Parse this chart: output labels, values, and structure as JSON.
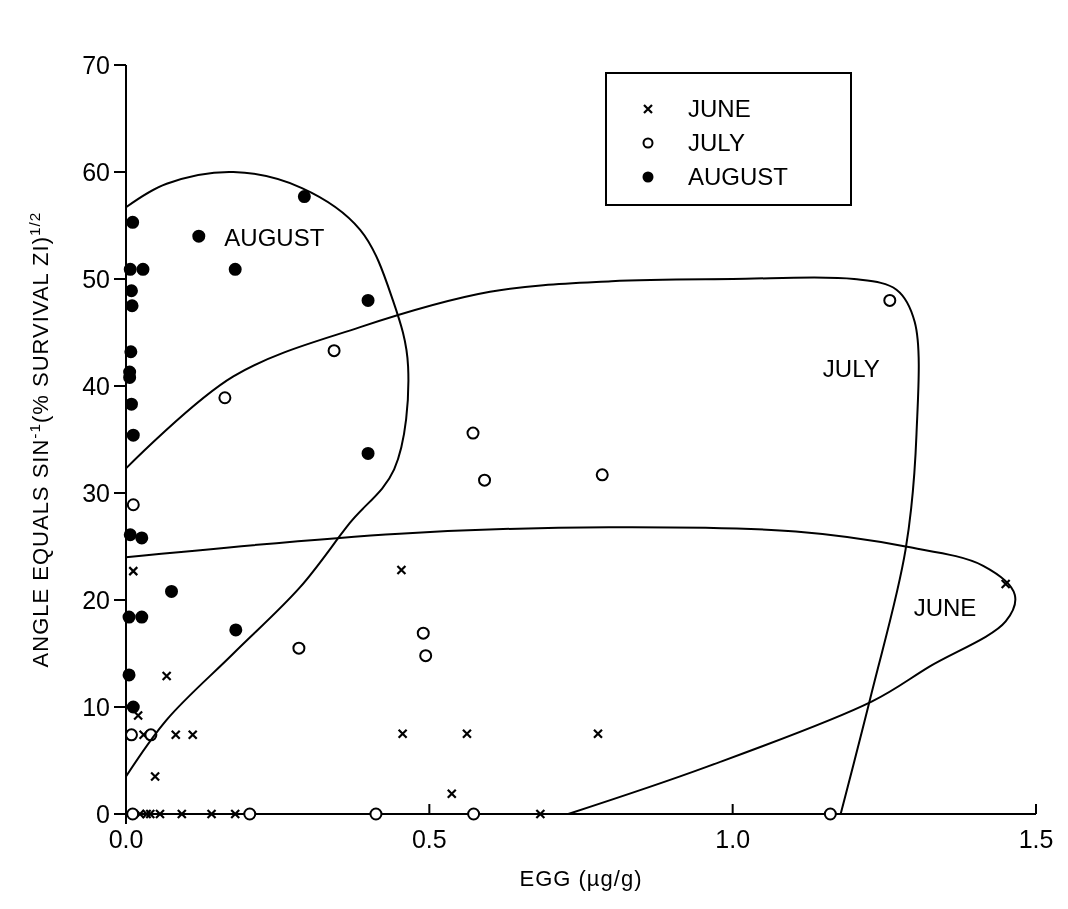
{
  "chart_data": {
    "type": "scatter",
    "xlabel": "EGG (µg/g)",
    "ylabel": "ANGLE EQUALS SIN$^{-1}$(% SURVIVAL ZI)$^{1/2}$",
    "xlim": [
      0,
      1.5
    ],
    "ylim": [
      0,
      70
    ],
    "xticks": [
      {
        "value": 0,
        "label": "0.0"
      },
      {
        "value": 0.5,
        "label": "0.5"
      },
      {
        "value": 1,
        "label": "1.0"
      },
      {
        "value": 1.5,
        "label": "1.5"
      }
    ],
    "yticks": [
      0,
      10,
      20,
      30,
      40,
      50,
      60,
      70
    ],
    "legend": "top right",
    "grid": false,
    "annotations": [
      "AUGUST",
      "JULY",
      "JUNE"
    ],
    "series": [
      {
        "name": "JUNE",
        "marker": "cross",
        "color": "#000000",
        "x": [
          0.012,
          0.067,
          0.02,
          0.029,
          0.082,
          0.11,
          0.048,
          0.023,
          0.034,
          0.04,
          0.056,
          0.092,
          0.141,
          0.18,
          0.454,
          0.456,
          0.562,
          0.778,
          0.537,
          0.683,
          1.45
        ],
        "values": [
          22.7,
          12.9,
          9.2,
          7.4,
          7.4,
          7.4,
          3.5,
          0,
          0,
          0,
          0,
          0,
          0,
          0,
          22.8,
          7.5,
          7.5,
          7.5,
          1.9,
          0,
          21.5
        ]
      },
      {
        "name": "JULY",
        "marker": "circle",
        "color": "#ffffff",
        "x": [
          0.343,
          0.163,
          0.012,
          0.285,
          0.009,
          0.041,
          0.011,
          0.204,
          0.412,
          1.259,
          0.572,
          0.591,
          0.785,
          0.49,
          0.494,
          0.573,
          1.161
        ],
        "values": [
          43.3,
          38.9,
          28.9,
          15.5,
          7.4,
          7.4,
          0,
          0,
          0,
          48,
          35.6,
          31.2,
          31.7,
          16.9,
          14.8,
          0,
          0
        ]
      },
      {
        "name": "AUGUST",
        "marker": "circle",
        "color": "#000000",
        "x": [
          0.011,
          0.12,
          0.294,
          0.007,
          0.028,
          0.18,
          0.009,
          0.01,
          0.008,
          0.006,
          0.006,
          0.009,
          0.012,
          0.399,
          0.399,
          0.007,
          0.026,
          0.075,
          0.005,
          0.026,
          0.181,
          0.005,
          0.012
        ],
        "values": [
          55.3,
          54,
          57.7,
          50.9,
          50.9,
          50.9,
          48.9,
          47.5,
          43.2,
          41.3,
          40.8,
          38.3,
          35.4,
          48,
          33.7,
          26.1,
          25.8,
          20.8,
          18.4,
          18.4,
          17.2,
          13,
          10
        ]
      },
      {
        "type": "line",
        "marker": "none",
        "color": "#000000",
        "x": [
          0,
          0.067,
          0.177,
          0.29,
          0.386,
          0.44,
          0.465,
          0.442,
          0.369,
          0.287,
          0.177,
          0.067,
          0
        ],
        "values": [
          56.7,
          58.9,
          60,
          58.5,
          54.6,
          48,
          41.8,
          32.2,
          27.2,
          21.2,
          15,
          8.8,
          3.5
        ]
      },
      {
        "type": "line",
        "marker": "none",
        "color": "#000000",
        "x": [
          0,
          0.177,
          0.386,
          0.6,
          0.8,
          1,
          1.2,
          1.27,
          1.3,
          1.303,
          1.285,
          1.229,
          1.178
        ],
        "values": [
          32.3,
          40.9,
          45.5,
          48.8,
          49.8,
          50,
          50,
          49,
          46,
          35.5,
          24.7,
          11.3,
          0
        ]
      },
      {
        "type": "line",
        "marker": "none",
        "color": "#000000",
        "x": [
          0,
          0.451,
          0.796,
          1.104,
          1.285,
          1.413,
          1.465,
          1.45,
          1.325,
          1.229,
          0.957,
          0.729
        ],
        "values": [
          24,
          26.2,
          26.8,
          26.4,
          25,
          23.2,
          20.5,
          18,
          13.8,
          10.5,
          4.4,
          0
        ]
      }
    ]
  }
}
